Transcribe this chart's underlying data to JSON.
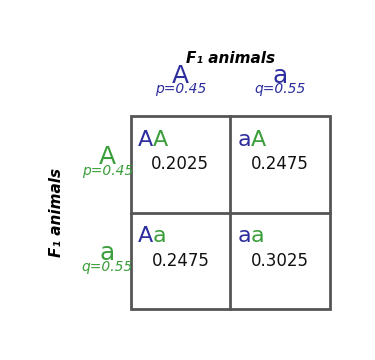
{
  "title": "F₁ animals",
  "title_fontsize": 11,
  "col_header_alleles": [
    "A",
    "a"
  ],
  "col_header_freqs": [
    "p=0.45",
    "q=0.55"
  ],
  "row_header_alleles": [
    "A",
    "a"
  ],
  "row_header_freqs": [
    "p=0.45",
    "q=0.55"
  ],
  "row_axis_label": "F₁ animals",
  "col_label_color": "#2d2d9e",
  "row_label_color": "#3a9e3a",
  "cell_labels": [
    [
      "AA",
      "aA"
    ],
    [
      "Aa",
      "aa"
    ]
  ],
  "cell_label_colors": [
    [
      [
        "#2d2d9e",
        "#3a9e3a"
      ],
      [
        "#3a9e3a",
        "#2d2d9e"
      ]
    ],
    [
      [
        "#2d2d9e",
        "#3a9e3a"
      ],
      [
        "#3a9e3a",
        "#3a9e3a"
      ]
    ]
  ],
  "cell_values": [
    [
      "0.2025",
      "0.2475"
    ],
    [
      "0.2475",
      "0.3025"
    ]
  ],
  "grid_color": "#555555",
  "grid_linewidth": 2.0,
  "value_color": "#111111",
  "allele_fontsize": 18,
  "freq_fontsize": 10,
  "cell_label_fontsize": 16,
  "cell_value_fontsize": 12,
  "axis_label_fontsize": 11
}
